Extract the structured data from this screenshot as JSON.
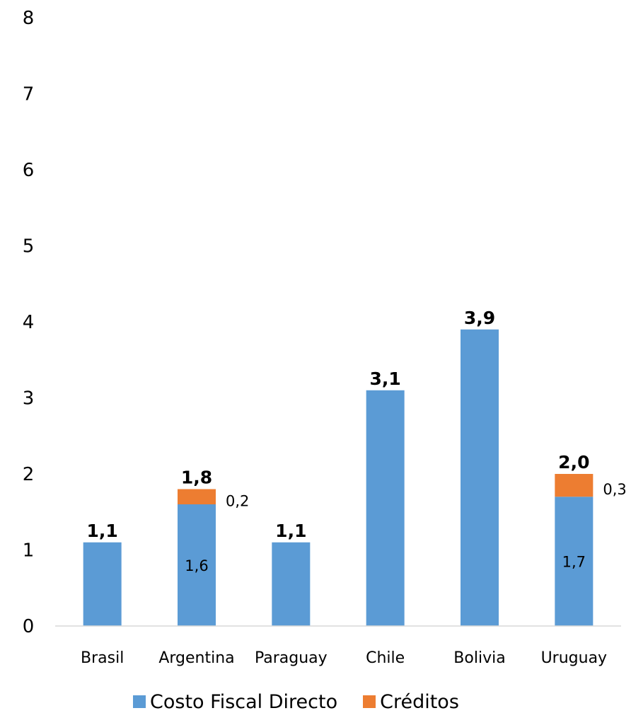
{
  "chart_data": {
    "type": "bar",
    "stacked": true,
    "categories": [
      "Brasil",
      "Argentina",
      "Paraguay",
      "Chile",
      "Bolivia",
      "Uruguay"
    ],
    "series": [
      {
        "name": "Costo Fiscal Directo",
        "color": "#5B9BD5",
        "values": [
          1.1,
          1.6,
          1.1,
          3.1,
          3.9,
          1.7
        ]
      },
      {
        "name": "Créditos",
        "color": "#ED7D31",
        "values": [
          0,
          0.2,
          0,
          0,
          0,
          0.3
        ]
      }
    ],
    "totals": [
      1.1,
      1.8,
      1.1,
      3.1,
      3.9,
      2.0
    ],
    "total_labels": [
      "1,1",
      "1,8",
      "1,1",
      "3,1",
      "3,9",
      "2,0"
    ],
    "segment_labels": {
      "Costo Fiscal Directo": [
        "",
        "1,6",
        "",
        "",
        "",
        "1,7"
      ],
      "Créditos": [
        "",
        "0,2",
        "",
        "",
        "",
        "0,3"
      ]
    },
    "yticks": [
      "0",
      "1",
      "2",
      "3",
      "4",
      "5",
      "6",
      "7",
      "8"
    ],
    "ylim": [
      0,
      8
    ],
    "title": "",
    "xlabel": "",
    "ylabel": "",
    "grid": false,
    "legend_position": "bottom"
  }
}
